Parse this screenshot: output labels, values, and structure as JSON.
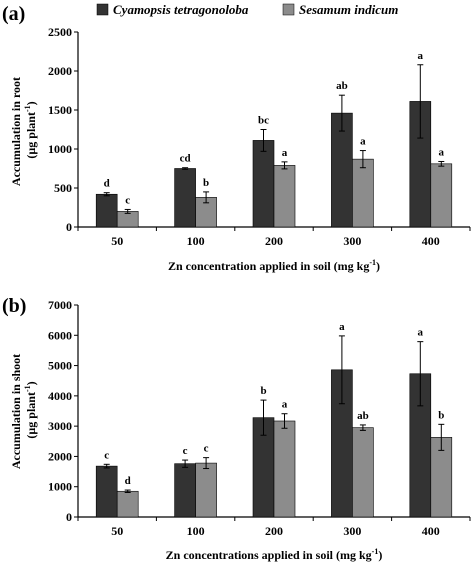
{
  "colors": {
    "series1": "#333333",
    "series2": "#8c8c8c",
    "axis": "#000000"
  },
  "legend": {
    "series1": "Cyamopsis tetragonoloba",
    "series2": "Sesamum indicum"
  },
  "chart_data": [
    {
      "type": "bar",
      "panel_label": "(a)",
      "categories": [
        "50",
        "100",
        "200",
        "300",
        "400"
      ],
      "xlabel": "Zn concentration applied in soil (mg kg",
      "xlabel_sup": "-1",
      "xlabel_end": ")",
      "ylabel_line1": "Accumulation in root",
      "ylabel_line2": "(µg plant",
      "ylabel_sup": "-1",
      "ylabel_end": ")",
      "ylim": [
        0,
        2500
      ],
      "yticks": [
        0,
        500,
        1000,
        1500,
        2000,
        2500
      ],
      "series": [
        {
          "name": "Cyamopsis tetragonoloba",
          "values": [
            420,
            750,
            1110,
            1460,
            1610
          ],
          "errors": [
            20,
            10,
            140,
            230,
            470
          ],
          "letters": [
            "d",
            "cd",
            "bc",
            "ab",
            "a"
          ]
        },
        {
          "name": "Sesamum indicum",
          "values": [
            200,
            380,
            790,
            870,
            810
          ],
          "errors": [
            25,
            70,
            45,
            110,
            30
          ],
          "letters": [
            "c",
            "b",
            "a",
            "a",
            "a"
          ]
        }
      ]
    },
    {
      "type": "bar",
      "panel_label": "(b)",
      "categories": [
        "50",
        "100",
        "200",
        "300",
        "400"
      ],
      "xlabel": "Zn concentrations applied in soil (mg kg",
      "xlabel_sup": "-1",
      "xlabel_end": ")",
      "ylabel_line1": "Accumulation in shoot",
      "ylabel_line2": "(µg plant",
      "ylabel_sup": "-1",
      "ylabel_end": ")",
      "ylim": [
        0,
        7000
      ],
      "yticks": [
        0,
        1000,
        2000,
        3000,
        4000,
        5000,
        6000,
        7000
      ],
      "series": [
        {
          "name": "Cyamopsis tetragonoloba",
          "values": [
            1680,
            1760,
            3280,
            4860,
            4730
          ],
          "errors": [
            60,
            120,
            580,
            1120,
            1060
          ],
          "letters": [
            "c",
            "c",
            "b",
            "a",
            "a"
          ]
        },
        {
          "name": "Sesamum indicum",
          "values": [
            850,
            1780,
            3170,
            2950,
            2630
          ],
          "errors": [
            40,
            180,
            240,
            90,
            430
          ],
          "letters": [
            "d",
            "c",
            "a",
            "ab",
            "b"
          ]
        }
      ]
    }
  ]
}
